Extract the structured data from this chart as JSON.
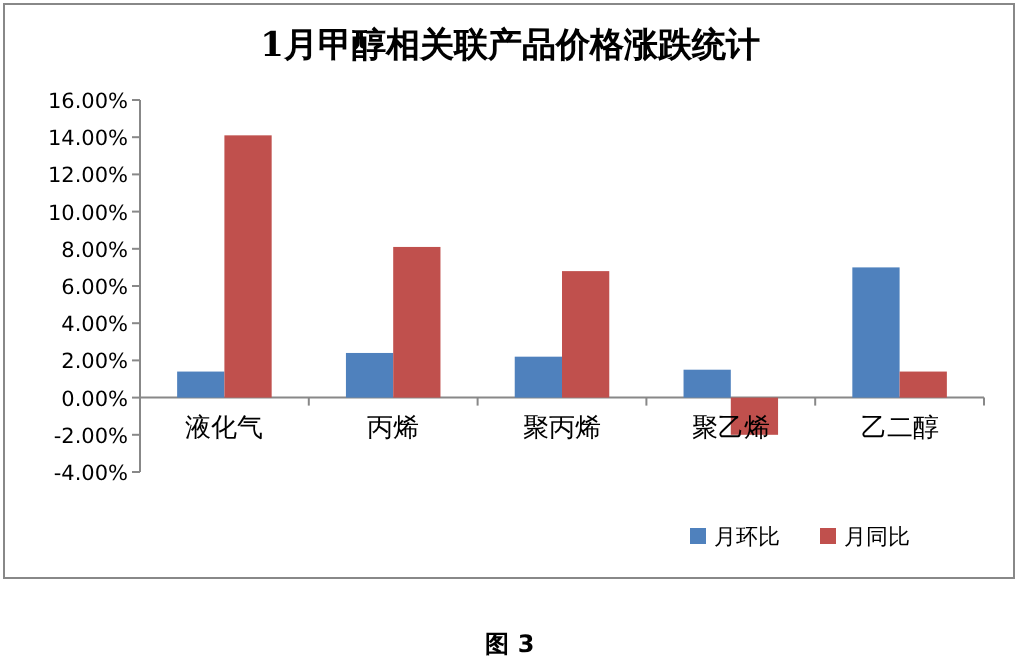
{
  "chart_data": {
    "type": "bar",
    "title": "1月甲醇相关联产品价格涨跌统计",
    "categories": [
      "液化气",
      "丙烯",
      "聚丙烯",
      "聚乙烯",
      "乙二醇"
    ],
    "series": [
      {
        "name": "月环比",
        "color": "#4f81bd",
        "values": [
          1.4,
          2.4,
          2.2,
          1.5,
          7.0
        ]
      },
      {
        "name": "月同比",
        "color": "#c0504d",
        "values": [
          14.1,
          8.1,
          6.8,
          -2.0,
          1.4
        ]
      }
    ],
    "ylim": [
      -4,
      16
    ],
    "yticks": [
      {
        "value": -4,
        "label": "-4.00%"
      },
      {
        "value": -2,
        "label": "-2.00%"
      },
      {
        "value": 0,
        "label": "0.00%"
      },
      {
        "value": 2,
        "label": "2.00%"
      },
      {
        "value": 4,
        "label": "4.00%"
      },
      {
        "value": 6,
        "label": "6.00%"
      },
      {
        "value": 8,
        "label": "8.00%"
      },
      {
        "value": 10,
        "label": "10.00%"
      },
      {
        "value": 12,
        "label": "12.00%"
      },
      {
        "value": 14,
        "label": "14.00%"
      },
      {
        "value": 16,
        "label": "16.00%"
      }
    ],
    "legend": "bottom right",
    "annotations": [
      "图 3"
    ]
  }
}
